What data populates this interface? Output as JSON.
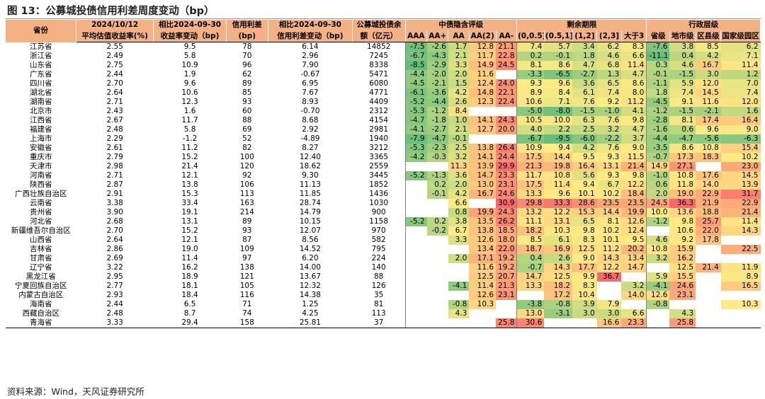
{
  "title": "图 13：公募城投债信用利差周度变动（bp）",
  "source": "资料来源：Wind，天风证券研究所",
  "header": {
    "province": "省份",
    "col1": [
      "2024/10/12",
      "平均估值收益率(%)"
    ],
    "col2": [
      "相比2024-09-30",
      "收益率变动（bp)"
    ],
    "col3": [
      "信用利差",
      "(bp)"
    ],
    "col4": [
      "相比2024-09-30",
      "信用利差变动（bp)"
    ],
    "col5": [
      "公募城投债余",
      "额（亿元）"
    ],
    "group_rating": "中债隐含评级",
    "group_term": "剩余期限",
    "group_admin": "行政层级",
    "rating_cols": [
      "AAA",
      "AA+",
      "AA",
      "AA(2)",
      "AA-"
    ],
    "term_cols": [
      "(0,0.5]",
      "(0.5,1]",
      "(1,2]",
      "(2,3]",
      "大于3"
    ],
    "admin_cols": [
      "省级",
      "地市级",
      "区县级",
      "国家级园区"
    ]
  },
  "rows": [
    {
      "p": "江苏省",
      "y": "2.55",
      "yc": "9.5",
      "s": "78",
      "sc": "6.14",
      "b": "14852",
      "r": [
        "-7.5",
        "-2.6",
        "1.7",
        "12.8",
        "21.1"
      ],
      "t": [
        "7.4",
        "5.7",
        "3.4",
        "6.2",
        "8.3"
      ],
      "a": [
        "-7.6",
        "3.8",
        "8.5",
        "6.2"
      ]
    },
    {
      "p": "浙江省",
      "y": "2.49",
      "yc": "5.8",
      "s": "70",
      "sc": "2.96",
      "b": "7245",
      "r": [
        "-6.7",
        "-4.3",
        "2.1",
        "11.7",
        "22.8"
      ],
      "t": [
        "0.2",
        "-0.1",
        "1.8",
        "4.6",
        "6.6"
      ],
      "a": [
        "-11.1",
        "0.4",
        "4.2",
        "7.1"
      ]
    },
    {
      "p": "山东省",
      "y": "2.75",
      "yc": "10.9",
      "s": "96",
      "sc": "7.90",
      "b": "8338",
      "r": [
        "-8.5",
        "-2.9",
        "3.3",
        "14.9",
        "24.5"
      ],
      "t": [
        "8.1",
        "8.6",
        "4.7",
        "6.8",
        "11.4"
      ],
      "a": [
        "0.3",
        "4.6",
        "16.7",
        "11.4"
      ]
    },
    {
      "p": "广东省",
      "y": "2.44",
      "yc": "1.9",
      "s": "62",
      "sc": "-0.67",
      "b": "5471",
      "r": [
        "-4.4",
        "-2.0",
        "2.0",
        "11.6",
        ""
      ],
      "t": [
        "-3.3",
        "-6.5",
        "-2.7",
        "1.3",
        "4.7"
      ],
      "a": [
        "-0.1",
        "-1.5",
        "3.0",
        "1.2"
      ]
    },
    {
      "p": "四川省",
      "y": "2.70",
      "yc": "9.6",
      "s": "89",
      "sc": "6.95",
      "b": "6080",
      "r": [
        "-4.5",
        "-2.1",
        "1.5",
        "12.4",
        "24.0"
      ],
      "t": [
        "9.3",
        "9.6",
        "3.6",
        "6.5",
        "8.6"
      ],
      "a": [
        "-1.1",
        "5.9",
        "12.0",
        "7.0"
      ]
    },
    {
      "p": "湖北省",
      "y": "2.64",
      "yc": "10.6",
      "s": "85",
      "sc": "7.67",
      "b": "4771",
      "r": [
        "-6.1",
        "-3.6",
        "4.2",
        "14.8",
        "22.1"
      ],
      "t": [
        "8.9",
        "8.4",
        "6.1",
        "7.4",
        "8.0"
      ],
      "a": [
        "1.8",
        "7.4",
        "14.5",
        "7.4"
      ]
    },
    {
      "p": "湖南省",
      "y": "2.71",
      "yc": "12.3",
      "s": "93",
      "sc": "8.93",
      "b": "4409",
      "r": [
        "-5.2",
        "-4.4",
        "2.6",
        "12.3",
        "22.4"
      ],
      "t": [
        "10.6",
        "7.1",
        "7.6",
        "9.2",
        "11.2"
      ],
      "a": [
        "-4.5",
        "9.1",
        "11.6",
        "12.0"
      ]
    },
    {
      "p": "北京市",
      "y": "2.43",
      "yc": "1.6",
      "s": "60",
      "sc": "-0.70",
      "b": "2312",
      "r": [
        "-5.3",
        "-1.2",
        "8.4",
        "",
        ""
      ],
      "t": [
        "-5.0",
        "-8.0",
        "-1.5",
        "-1.0",
        "4.1"
      ],
      "a": [
        "-1.2",
        "-1.5",
        "-2.1",
        "1.6"
      ]
    },
    {
      "p": "江西省",
      "y": "2.67",
      "yc": "11.7",
      "s": "88",
      "sc": "8.68",
      "b": "4154",
      "r": [
        "-4.7",
        "-1.8",
        "1.0",
        "14.1",
        "24.3"
      ],
      "t": [
        "10.5",
        "10.0",
        "6.3",
        "7.6",
        "9.8"
      ],
      "a": [
        "-2.8",
        "8.1",
        "17.4",
        "16.4"
      ]
    },
    {
      "p": "福建省",
      "y": "2.48",
      "yc": "5.8",
      "s": "69",
      "sc": "2.92",
      "b": "2981",
      "r": [
        "-4.1",
        "-2.7",
        "2.1",
        "12.7",
        "20.0"
      ],
      "t": [
        "4.0",
        "2.2",
        "2.5",
        "3.2",
        "4.7"
      ],
      "a": [
        "-1.6",
        "0.6",
        "9.6",
        "9.0"
      ]
    },
    {
      "p": "上海市",
      "y": "2.29",
      "yc": "-1.2",
      "s": "52",
      "sc": "-4.89",
      "b": "1940",
      "r": [
        "-7.9",
        "-4.7",
        "-0.1",
        "",
        ""
      ],
      "t": [
        "-6.7",
        "-9.5",
        "-6.0",
        "-2.2",
        "3.7"
      ],
      "a": [
        "-4.4",
        "-4.7",
        "-5.6",
        "-6.3"
      ]
    },
    {
      "p": "安徽省",
      "y": "2.61",
      "yc": "11.2",
      "s": "82",
      "sc": "8.27",
      "b": "3212",
      "r": [
        "-5.3",
        "-2.3",
        "2.5",
        "13.8",
        "26.4"
      ],
      "t": [
        "10.9",
        "9.4",
        "4.2",
        "7.6",
        "9.0"
      ],
      "a": [
        "-3.5",
        "8.6",
        "10.8",
        "15.4"
      ]
    },
    {
      "p": "重庆市",
      "y": "2.79",
      "yc": "15.2",
      "s": "100",
      "sc": "12.40",
      "b": "3365",
      "r": [
        "-4.2",
        "-0.3",
        "3.2",
        "14.1",
        "24.4"
      ],
      "t": [
        "17.5",
        "14.4",
        "9.5",
        "9.3",
        "11.5"
      ],
      "a": [
        "-0.7",
        "17.3",
        "18.3",
        "10.2"
      ]
    },
    {
      "p": "天津市",
      "y": "2.98",
      "yc": "21.4",
      "s": "120",
      "sc": "18.62",
      "b": "2559",
      "r": [
        "",
        "",
        "11.3",
        "13.9",
        "29.9"
      ],
      "t": [
        "21.3",
        "19.8",
        "16.4",
        "13.1",
        "21.4"
      ],
      "a": [
        "14.9",
        "27.1",
        "",
        "23.0"
      ]
    },
    {
      "p": "河南省",
      "y": "2.71",
      "yc": "12.1",
      "s": "92",
      "sc": "9.30",
      "b": "3445",
      "r": [
        "-5.2",
        "-1.3",
        "3.6",
        "14.7",
        "23.3"
      ],
      "t": [
        "11.7",
        "10.8",
        "5.6",
        "9.3",
        "9.8"
      ],
      "a": [
        "-1.0",
        "10.8",
        "17.6",
        "14.5"
      ]
    },
    {
      "p": "陕西省",
      "y": "2.87",
      "yc": "13.8",
      "s": "106",
      "sc": "11.13",
      "b": "1852",
      "r": [
        "",
        "0.2",
        "2.0",
        "13.0",
        "23.1"
      ],
      "t": [
        "17.5",
        "11.4",
        "9.4",
        "6.7",
        "12.2"
      ],
      "a": [
        "0.6",
        "11.8",
        "14.0",
        "13.9"
      ]
    },
    {
      "p": "广西壮族自治区",
      "y": "2.91",
      "yc": "15.3",
      "s": "113",
      "sc": "11.85",
      "b": "1436",
      "r": [
        "",
        "-0.1",
        "4.2",
        "16.7",
        "24.6"
      ],
      "t": [
        "13.3",
        "9.6",
        "10.1",
        "10.2",
        "18.4"
      ],
      "a": [
        "2.0",
        "19.0",
        "22.9",
        "31.7"
      ]
    },
    {
      "p": "云南省",
      "y": "3.38",
      "yc": "33.4",
      "s": "163",
      "sc": "28.74",
      "b": "1030",
      "r": [
        "",
        "",
        "6.6",
        "",
        "30.9"
      ],
      "t": [
        "29.8",
        "33.3",
        "28.6",
        "23.5",
        "23.5"
      ],
      "a": [
        "24.5",
        "36.3",
        "21.9",
        "22.9"
      ]
    },
    {
      "p": "贵州省",
      "y": "3.90",
      "yc": "19.1",
      "s": "214",
      "sc": "14.79",
      "b": "900",
      "r": [
        "",
        "",
        "0.8",
        "19.9",
        "24.3"
      ],
      "t": [
        "13.2",
        "12.2",
        "15.3",
        "14.4",
        "19.9"
      ],
      "a": [
        "10.0",
        "13.6",
        "18.8",
        "21.4"
      ]
    },
    {
      "p": "河北省",
      "y": "2.68",
      "yc": "13.1",
      "s": "89",
      "sc": "10.15",
      "b": "1158",
      "r": [
        "-5.2",
        "0.2",
        "3.8",
        "13.5",
        "26.2"
      ],
      "t": [
        "11.1",
        "13.1",
        "6.5",
        "8.1",
        "12.6"
      ],
      "a": [
        "-1.2",
        "9.8",
        "25.7",
        "11.4"
      ]
    },
    {
      "p": "新疆维吾尔自治区",
      "y": "2.70",
      "yc": "15.2",
      "s": "93",
      "sc": "12.07",
      "b": "970",
      "r": [
        "",
        "-0.2",
        "6.7",
        "13.8",
        "18.5"
      ],
      "t": [
        "18.2",
        "10.3",
        "9.8",
        "10.2",
        "12.4"
      ],
      "a": [
        "",
        "10.6",
        "22.0",
        "14.3"
      ]
    },
    {
      "p": "山西省",
      "y": "2.64",
      "yc": "12.1",
      "s": "87",
      "sc": "8.56",
      "b": "582",
      "r": [
        "",
        "",
        "3.3",
        "12.6",
        "18.0"
      ],
      "t": [
        "8.5",
        "6.1",
        "8.3",
        "10.1",
        "9.5"
      ],
      "a": [
        "4.6",
        "9.2",
        "17.8",
        ""
      ]
    },
    {
      "p": "吉林省",
      "y": "2.86",
      "yc": "19.0",
      "s": "109",
      "sc": "14.52",
      "b": "795",
      "r": [
        "",
        "",
        "",
        "13.4",
        "22.0"
      ],
      "t": [
        "18.7",
        "16.9",
        "12.5",
        "11.2",
        "20.2"
      ],
      "a": [
        "10.8",
        "15.9",
        "",
        "22.5"
      ]
    },
    {
      "p": "甘肃省",
      "y": "2.69",
      "yc": "11.4",
      "s": "97",
      "sc": "6.20",
      "b": "224",
      "r": [
        "",
        "",
        "2.0",
        "17.1",
        "19.2"
      ],
      "t": [
        "0.4",
        "2.6",
        "9.0",
        "14.3",
        "13.4"
      ],
      "a": [
        "3.2",
        "16.2",
        "",
        ""
      ]
    },
    {
      "p": "辽宁省",
      "y": "3.22",
      "yc": "16.2",
      "s": "138",
      "sc": "14.00",
      "b": "140",
      "r": [
        "",
        "",
        "",
        "11.6",
        "19.2"
      ],
      "t": [
        "-0.7",
        "14.3",
        "17.7",
        "12.2",
        "14.7"
      ],
      "a": [
        "",
        "12.5",
        "21.4",
        "11.9"
      ]
    },
    {
      "p": "黑龙江省",
      "y": "2.95",
      "yc": "18.9",
      "s": "121",
      "sc": "13.67",
      "b": "88",
      "r": [
        "",
        "",
        "",
        "12.5",
        "20.7"
      ],
      "t": [
        "14.7",
        "12.5",
        "9.9",
        "36.7",
        ""
      ],
      "a": [
        "5.9",
        "15.5",
        "",
        "8.9"
      ]
    },
    {
      "p": "宁夏回族自治区",
      "y": "2.77",
      "yc": "18.1",
      "s": "105",
      "sc": "12.32",
      "b": "126",
      "r": [
        "",
        "",
        "-4.1",
        "11.4",
        "21.3"
      ],
      "t": [
        "13.3",
        "18.2",
        "8.3",
        "",
        "3.2"
      ],
      "a": [
        "-4.1",
        "24.6",
        "",
        "16.5"
      ]
    },
    {
      "p": "内蒙古自治区",
      "y": "2.93",
      "yc": "18.4",
      "s": "116",
      "sc": "14.38",
      "b": "35",
      "r": [
        "",
        "",
        "",
        "12.6",
        "23.1"
      ],
      "t": [
        "",
        "17.2",
        "10.4",
        "",
        "14.0"
      ],
      "a": [
        "12.6",
        "23.1",
        "",
        ""
      ]
    },
    {
      "p": "海南省",
      "y": "2.44",
      "yc": "6.5",
      "s": "71",
      "sc": "1.25",
      "b": "81",
      "r": [
        "",
        "",
        "-0.8",
        "10.3",
        ""
      ],
      "t": [
        "-3.8",
        "-0.8",
        "3.9",
        "7.9",
        ""
      ],
      "a": [
        "-0.8",
        "",
        "",
        "10.3"
      ]
    },
    {
      "p": "西藏自治区",
      "y": "2.48",
      "yc": "8.7",
      "s": "74",
      "sc": "4.25",
      "b": "113",
      "r": [
        "",
        "",
        "4.3",
        "",
        ""
      ],
      "t": [
        "13.0",
        "-3.1",
        "3.0",
        "3.0",
        "6.6"
      ],
      "a": [
        "",
        "4.3",
        "",
        ""
      ]
    },
    {
      "p": "青海省",
      "y": "3.33",
      "yc": "29.4",
      "s": "158",
      "sc": "25.81",
      "b": "37",
      "r": [
        "",
        "",
        "",
        "",
        "25.8"
      ],
      "t": [
        "30.6",
        "",
        "",
        "16.6",
        "23.3"
      ],
      "a": [
        "",
        "25.8",
        "",
        ""
      ]
    }
  ]
}
